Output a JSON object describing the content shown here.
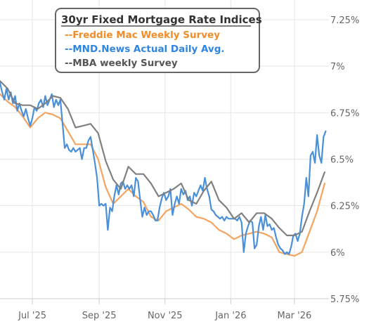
{
  "chart_data": {
    "type": "line",
    "title": "30yr Fixed Mortgage Rate Indices",
    "xlabel": "",
    "ylabel": "",
    "ylim": [
      5.75,
      7.25
    ],
    "xlim": [
      "2025-06-01",
      "2026-04-02"
    ],
    "y_ticks": [
      {
        "value": 7.25,
        "label": "7.25%"
      },
      {
        "value": 7.0,
        "label": "7%"
      },
      {
        "value": 6.75,
        "label": "6.75%"
      },
      {
        "value": 6.5,
        "label": "6.5%"
      },
      {
        "value": 6.25,
        "label": "6.25%"
      },
      {
        "value": 6.0,
        "label": "6%"
      },
      {
        "value": 5.75,
        "label": "5.75%"
      }
    ],
    "x_ticks": [
      {
        "date": "2025-07-01",
        "label": "Jul '25"
      },
      {
        "date": "2025-09-01",
        "label": "Sep '25"
      },
      {
        "date": "2025-11-01",
        "label": "Nov '25"
      },
      {
        "date": "2026-01-01",
        "label": "Jan '26"
      },
      {
        "date": "2026-03-01",
        "label": "Mar '26"
      }
    ],
    "grid": {
      "horizontal": true,
      "vertical": true
    },
    "legend": "top-left",
    "series": [
      {
        "name": "--Freddie Mac Weekly Survey",
        "color": "#f4a460",
        "x": [
          "2025-06-01",
          "2025-06-08",
          "2025-06-15",
          "2025-06-22",
          "2025-06-29",
          "2025-07-06",
          "2025-07-13",
          "2025-07-20",
          "2025-07-27",
          "2025-08-03",
          "2025-08-10",
          "2025-08-17",
          "2025-08-24",
          "2025-08-31",
          "2025-09-07",
          "2025-09-14",
          "2025-09-21",
          "2025-09-28",
          "2025-10-05",
          "2025-10-12",
          "2025-10-19",
          "2025-10-26",
          "2025-11-02",
          "2025-11-09",
          "2025-11-16",
          "2025-11-23",
          "2025-11-30",
          "2025-12-07",
          "2025-12-14",
          "2025-12-21",
          "2025-12-28",
          "2026-01-04",
          "2026-01-11",
          "2026-01-18",
          "2026-01-25",
          "2026-02-01",
          "2026-02-08",
          "2026-02-15",
          "2026-02-22",
          "2026-03-01",
          "2026-03-08",
          "2026-03-15",
          "2026-03-22",
          "2026-03-29"
        ],
        "values": [
          6.85,
          6.81,
          6.78,
          6.73,
          6.67,
          6.72,
          6.75,
          6.74,
          6.72,
          6.65,
          6.58,
          6.58,
          6.58,
          6.5,
          6.35,
          6.26,
          6.3,
          6.34,
          6.3,
          6.27,
          6.19,
          6.17,
          6.22,
          6.24,
          6.26,
          6.23,
          6.19,
          6.18,
          6.16,
          6.12,
          6.1,
          6.07,
          6.09,
          6.1,
          6.11,
          6.1,
          6.08,
          6.0,
          5.99,
          5.98,
          6.0,
          6.11,
          6.22,
          6.37
        ]
      },
      {
        "name": "--MND.News Actual Daily Avg.",
        "color": "#4a90d9",
        "x": [
          "2025-06-01",
          "2025-06-03",
          "2025-06-05",
          "2025-06-07",
          "2025-06-09",
          "2025-06-11",
          "2025-06-13",
          "2025-06-15",
          "2025-06-17",
          "2025-06-19",
          "2025-06-21",
          "2025-06-23",
          "2025-06-25",
          "2025-06-27",
          "2025-06-29",
          "2025-07-01",
          "2025-07-03",
          "2025-07-05",
          "2025-07-07",
          "2025-07-09",
          "2025-07-11",
          "2025-07-13",
          "2025-07-15",
          "2025-07-17",
          "2025-07-19",
          "2025-07-21",
          "2025-07-23",
          "2025-07-25",
          "2025-07-27",
          "2025-07-29",
          "2025-07-31",
          "2025-08-02",
          "2025-08-04",
          "2025-08-06",
          "2025-08-08",
          "2025-08-10",
          "2025-08-12",
          "2025-08-14",
          "2025-08-16",
          "2025-08-18",
          "2025-08-20",
          "2025-08-22",
          "2025-08-24",
          "2025-08-26",
          "2025-08-28",
          "2025-08-30",
          "2025-09-01",
          "2025-09-03",
          "2025-09-05",
          "2025-09-07",
          "2025-09-09",
          "2025-09-11",
          "2025-09-13",
          "2025-09-15",
          "2025-09-17",
          "2025-09-19",
          "2025-09-21",
          "2025-09-23",
          "2025-09-25",
          "2025-09-27",
          "2025-09-29",
          "2025-10-01",
          "2025-10-03",
          "2025-10-05",
          "2025-10-07",
          "2025-10-09",
          "2025-10-11",
          "2025-10-13",
          "2025-10-15",
          "2025-10-17",
          "2025-10-19",
          "2025-10-21",
          "2025-10-23",
          "2025-10-25",
          "2025-10-27",
          "2025-10-29",
          "2025-10-31",
          "2025-11-02",
          "2025-11-04",
          "2025-11-06",
          "2025-11-08",
          "2025-11-10",
          "2025-11-12",
          "2025-11-14",
          "2025-11-16",
          "2025-11-18",
          "2025-11-20",
          "2025-11-22",
          "2025-11-24",
          "2025-11-26",
          "2025-11-28",
          "2025-11-30",
          "2025-12-02",
          "2025-12-04",
          "2025-12-06",
          "2025-12-08",
          "2025-12-10",
          "2025-12-12",
          "2025-12-14",
          "2025-12-16",
          "2025-12-18",
          "2025-12-20",
          "2025-12-22",
          "2025-12-24",
          "2025-12-26",
          "2025-12-28",
          "2025-12-30",
          "2026-01-01",
          "2026-01-03",
          "2026-01-05",
          "2026-01-07",
          "2026-01-09",
          "2026-01-11",
          "2026-01-13",
          "2026-01-15",
          "2026-01-17",
          "2026-01-19",
          "2026-01-21",
          "2026-01-23",
          "2026-01-25",
          "2026-01-27",
          "2026-01-29",
          "2026-01-31",
          "2026-02-02",
          "2026-02-04",
          "2026-02-06",
          "2026-02-08",
          "2026-02-10",
          "2026-02-12",
          "2026-02-14",
          "2026-02-16",
          "2026-02-18",
          "2026-02-20",
          "2026-02-22",
          "2026-02-24",
          "2026-02-26",
          "2026-02-28",
          "2026-03-02",
          "2026-03-04",
          "2026-03-06",
          "2026-03-08",
          "2026-03-10",
          "2026-03-12",
          "2026-03-14",
          "2026-03-16",
          "2026-03-18",
          "2026-03-20",
          "2026-03-22",
          "2026-03-24",
          "2026-03-26",
          "2026-03-28",
          "2026-03-30"
        ],
        "values": [
          6.91,
          6.86,
          6.82,
          6.88,
          6.82,
          6.86,
          6.8,
          6.84,
          6.76,
          6.8,
          6.76,
          6.73,
          6.77,
          6.72,
          6.68,
          6.72,
          6.78,
          6.76,
          6.8,
          6.82,
          6.78,
          6.84,
          6.79,
          6.82,
          6.85,
          6.78,
          6.82,
          6.79,
          6.82,
          6.69,
          6.56,
          6.58,
          6.55,
          6.54,
          6.56,
          6.54,
          6.55,
          6.56,
          6.5,
          6.56,
          6.56,
          6.6,
          6.62,
          6.55,
          6.48,
          6.4,
          6.25,
          6.26,
          6.25,
          6.26,
          6.12,
          6.24,
          6.22,
          6.3,
          6.36,
          6.31,
          6.37,
          6.38,
          6.34,
          6.36,
          6.34,
          6.36,
          6.3,
          6.4,
          6.38,
          6.28,
          6.19,
          6.24,
          6.2,
          6.22,
          6.22,
          6.2,
          6.17,
          6.17,
          6.24,
          6.29,
          6.32,
          6.28,
          6.3,
          6.34,
          6.2,
          6.26,
          6.3,
          6.26,
          6.34,
          6.31,
          6.33,
          6.28,
          6.3,
          6.25,
          6.32,
          6.3,
          6.33,
          6.36,
          6.33,
          6.4,
          6.34,
          6.3,
          6.23,
          6.22,
          6.2,
          6.19,
          6.18,
          6.19,
          6.17,
          6.19,
          6.18,
          6.18,
          6.18,
          6.18,
          6.17,
          6.19,
          6.16,
          6.0,
          6.1,
          6.14,
          6.17,
          6.16,
          6.02,
          6.04,
          6.14,
          6.19,
          6.12,
          6.2,
          6.14,
          6.15,
          6.12,
          6.13,
          6.08,
          6.04,
          6.02,
          6.01,
          5.99,
          6.0,
          5.99,
          6.03,
          6.09,
          6.1,
          6.06,
          6.1,
          6.19,
          6.26,
          6.4,
          6.3,
          6.52,
          6.54,
          6.48,
          6.63,
          6.52,
          6.48,
          6.62,
          6.65
        ]
      },
      {
        "name": "--MBA weekly Survey",
        "color": "#808080",
        "x": [
          "2025-06-01",
          "2025-06-08",
          "2025-06-15",
          "2025-06-22",
          "2025-06-29",
          "2025-07-06",
          "2025-07-13",
          "2025-07-20",
          "2025-07-27",
          "2025-08-03",
          "2025-08-10",
          "2025-08-17",
          "2025-08-24",
          "2025-08-31",
          "2025-09-07",
          "2025-09-14",
          "2025-09-21",
          "2025-09-28",
          "2025-10-05",
          "2025-10-12",
          "2025-10-19",
          "2025-10-26",
          "2025-11-02",
          "2025-11-09",
          "2025-11-16",
          "2025-11-23",
          "2025-11-30",
          "2025-12-07",
          "2025-12-14",
          "2025-12-21",
          "2025-12-28",
          "2026-01-04",
          "2026-01-11",
          "2026-01-18",
          "2026-01-25",
          "2026-02-01",
          "2026-02-08",
          "2026-02-15",
          "2026-02-22",
          "2026-03-01",
          "2026-03-08",
          "2026-03-15",
          "2026-03-22",
          "2026-03-29"
        ],
        "values": [
          6.92,
          6.88,
          6.8,
          6.79,
          6.79,
          6.77,
          6.8,
          6.84,
          6.83,
          6.77,
          6.67,
          6.68,
          6.69,
          6.64,
          6.49,
          6.39,
          6.34,
          6.46,
          6.42,
          6.42,
          6.37,
          6.3,
          6.32,
          6.34,
          6.37,
          6.28,
          6.26,
          6.33,
          6.38,
          6.28,
          6.24,
          6.18,
          6.21,
          6.16,
          6.21,
          6.21,
          6.18,
          6.13,
          6.09,
          6.09,
          6.11,
          6.22,
          6.32,
          6.43
        ]
      }
    ]
  }
}
